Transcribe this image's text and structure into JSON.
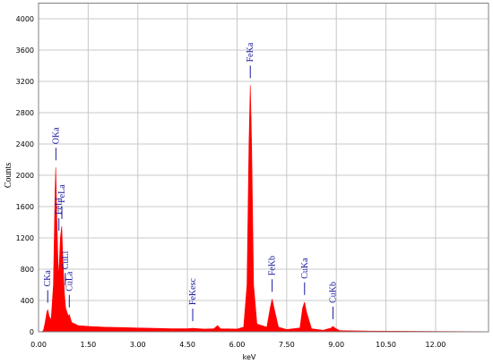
{
  "chart_data": {
    "type": "area",
    "xlabel": "keV",
    "ylabel": "Counts",
    "color": "#ff0000",
    "grid": true,
    "xlim": [
      0,
      13.6
    ],
    "ylim": [
      0,
      4200
    ],
    "xticks": [
      {
        "value": 0,
        "label": "0.00"
      },
      {
        "value": 1.5,
        "label": "1.50"
      },
      {
        "value": 3,
        "label": "3.00"
      },
      {
        "value": 4.5,
        "label": "4.50"
      },
      {
        "value": 6,
        "label": "6.00"
      },
      {
        "value": 7.5,
        "label": "7.50"
      },
      {
        "value": 9,
        "label": "9.00"
      },
      {
        "value": 10.5,
        "label": "10.50"
      },
      {
        "value": 12,
        "label": "12.00"
      }
    ],
    "yticks": [
      0,
      400,
      800,
      1200,
      1600,
      2000,
      2400,
      2800,
      3200,
      3600,
      4000
    ],
    "x": [
      0,
      0.1,
      0.15,
      0.2,
      0.25,
      0.28,
      0.32,
      0.38,
      0.45,
      0.5,
      0.52,
      0.55,
      0.6,
      0.63,
      0.66,
      0.7,
      0.73,
      0.78,
      0.82,
      0.9,
      0.93,
      1.0,
      1.2,
      1.5,
      2.0,
      2.5,
      3.0,
      3.5,
      4.0,
      4.5,
      4.66,
      5.0,
      5.3,
      5.41,
      5.5,
      6.0,
      6.2,
      6.3,
      6.36,
      6.4,
      6.44,
      6.5,
      6.6,
      6.9,
      7.0,
      7.06,
      7.12,
      7.25,
      7.5,
      7.9,
      7.98,
      8.04,
      8.1,
      8.25,
      8.6,
      8.85,
      8.9,
      8.95,
      9.1,
      10.0,
      12.0,
      13.6
    ],
    "values": [
      0,
      0,
      20,
      120,
      250,
      280,
      200,
      150,
      600,
      1800,
      2100,
      1500,
      700,
      900,
      1200,
      1350,
      1000,
      500,
      300,
      200,
      220,
      120,
      80,
      70,
      60,
      55,
      50,
      45,
      40,
      40,
      45,
      35,
      40,
      80,
      40,
      35,
      60,
      600,
      2400,
      3150,
      2400,
      600,
      100,
      60,
      300,
      420,
      300,
      60,
      30,
      50,
      300,
      380,
      250,
      40,
      20,
      50,
      70,
      50,
      15,
      10,
      5,
      3
    ],
    "markers": [
      {
        "label": "CKa",
        "x": 0.277
      },
      {
        "label": "OKa",
        "x": 0.525
      },
      {
        "label": "FeLl",
        "x": 0.615
      },
      {
        "label": "FeLa",
        "x": 0.705
      },
      {
        "label": "CuLl",
        "x": 0.811
      },
      {
        "label": "CuLa",
        "x": 0.93
      },
      {
        "label": "FeKesc",
        "x": 4.66
      },
      {
        "label": "FeKa",
        "x": 6.4
      },
      {
        "label": "FeKb",
        "x": 7.06
      },
      {
        "label": "CuKa",
        "x": 8.04
      },
      {
        "label": "CuKb",
        "x": 8.9
      }
    ]
  }
}
